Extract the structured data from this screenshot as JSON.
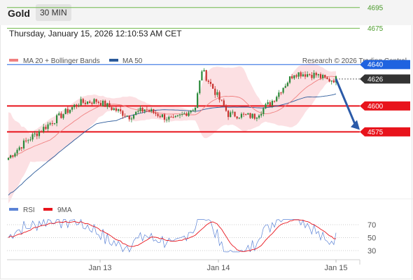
{
  "header": {
    "title": "Gold",
    "timeframe": "30 MIN"
  },
  "datetime": "Thursday, January 15, 2026 12:10:53 AM CET",
  "legend": {
    "ma20": "MA 20 + Bollinger Bands",
    "ma50": "MA 50",
    "rsi": "RSI",
    "rsi_ma": "9MA"
  },
  "copyright": "Research © 2026 Trading Central",
  "colors": {
    "up": "#2a8a3a",
    "down": "#c8312d",
    "resistance": "#6fb84a",
    "pivot": "#1f63e0",
    "support": "#e8141c",
    "current": "#333333",
    "ma50": "#2b5a9a",
    "ma20": "#f08080",
    "bands": "#fbd6d9",
    "rsi": "#5b83d6",
    "rsi_ma": "#e8141c"
  },
  "chart_data": [
    {
      "type": "candlestick",
      "xlabel": "",
      "ylabel": "",
      "x_ticks": [
        "Jan 13",
        "Jan 14",
        "Jan 15"
      ],
      "ylim": [
        4530,
        4720
      ],
      "levels": [
        {
          "value": 4695,
          "label": "4695",
          "kind": "resistance"
        },
        {
          "value": 4675,
          "label": "4675",
          "kind": "resistance"
        },
        {
          "value": 4640,
          "label": "4640",
          "kind": "pivot"
        },
        {
          "value": 4626,
          "label": "4626",
          "kind": "current"
        },
        {
          "value": 4600,
          "label": "4600",
          "kind": "support"
        },
        {
          "value": 4575,
          "label": "4575",
          "kind": "support"
        }
      ],
      "forecast": {
        "from": 4626,
        "to": 4577,
        "direction": "down"
      }
    },
    {
      "type": "line",
      "series": [
        {
          "name": "RSI"
        },
        {
          "name": "9MA"
        }
      ],
      "y_ticks": [
        70,
        50,
        30
      ],
      "ylim": [
        20,
        80
      ]
    }
  ]
}
